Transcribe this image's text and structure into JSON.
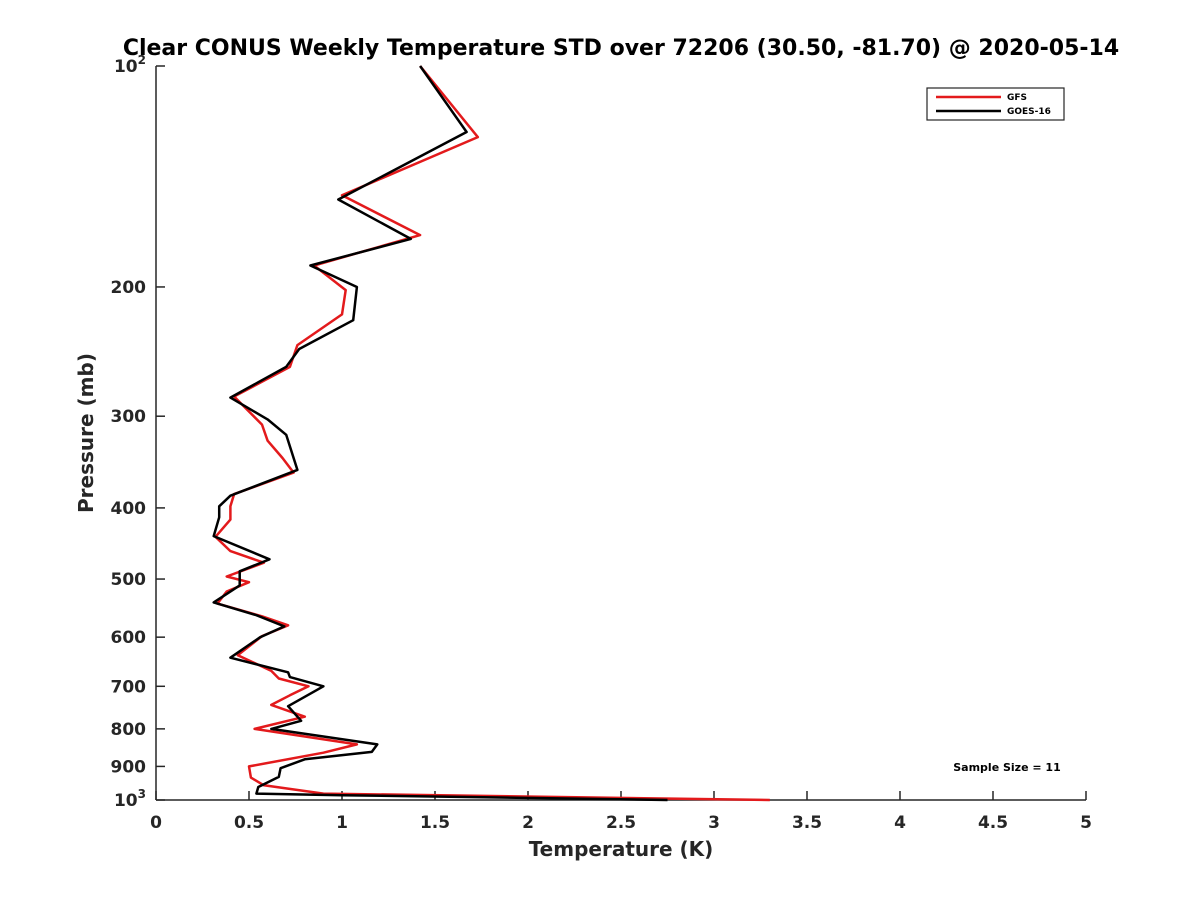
{
  "chart_data": {
    "type": "line",
    "title": "Clear CONUS Weekly Temperature STD over 72206 (30.50, -81.70) @ 2020-05-14",
    "xlabel": "Temperature (K)",
    "ylabel": "Pressure (mb)",
    "xlim": [
      0,
      5
    ],
    "ylim": [
      100,
      1000
    ],
    "y_scale": "log",
    "y_reversed": true,
    "x_ticks": [
      "0",
      "0.5",
      "1",
      "1.5",
      "2",
      "2.5",
      "3",
      "3.5",
      "4",
      "4.5",
      "5"
    ],
    "x_tick_values": [
      0,
      0.5,
      1,
      1.5,
      2,
      2.5,
      3,
      3.5,
      4,
      4.5,
      5
    ],
    "y_ticks": [
      {
        "value": 100,
        "base": "10",
        "exp": "2"
      },
      {
        "value": 200,
        "label": "200"
      },
      {
        "value": 300,
        "label": "300"
      },
      {
        "value": 400,
        "label": "400"
      },
      {
        "value": 500,
        "label": "500"
      },
      {
        "value": 600,
        "label": "600"
      },
      {
        "value": 700,
        "label": "700"
      },
      {
        "value": 800,
        "label": "800"
      },
      {
        "value": 900,
        "label": "900"
      },
      {
        "value": 1000,
        "base": "10",
        "exp": "3"
      }
    ],
    "grid": false,
    "legend_position": "top-right",
    "annotation": "Sample Size = 11",
    "series": [
      {
        "name": "GFS",
        "color": "#e31a1c",
        "points": [
          [
            1.42,
            100
          ],
          [
            1.73,
            125
          ],
          [
            1.0,
            150
          ],
          [
            1.42,
            170
          ],
          [
            0.85,
            187
          ],
          [
            1.02,
            202
          ],
          [
            1.0,
            218
          ],
          [
            0.76,
            240
          ],
          [
            0.72,
            257
          ],
          [
            0.42,
            282
          ],
          [
            0.57,
            308
          ],
          [
            0.6,
            324
          ],
          [
            0.68,
            342
          ],
          [
            0.74,
            358
          ],
          [
            0.42,
            383
          ],
          [
            0.4,
            398
          ],
          [
            0.4,
            415
          ],
          [
            0.32,
            438
          ],
          [
            0.4,
            458
          ],
          [
            0.58,
            475
          ],
          [
            0.38,
            496
          ],
          [
            0.5,
            505
          ],
          [
            0.38,
            520
          ],
          [
            0.33,
            540
          ],
          [
            0.57,
            562
          ],
          [
            0.71,
            578
          ],
          [
            0.57,
            598
          ],
          [
            0.44,
            635
          ],
          [
            0.62,
            667
          ],
          [
            0.66,
            683
          ],
          [
            0.82,
            700
          ],
          [
            0.72,
            720
          ],
          [
            0.62,
            742
          ],
          [
            0.8,
            770
          ],
          [
            0.53,
            800
          ],
          [
            1.08,
            840
          ],
          [
            0.9,
            862
          ],
          [
            0.5,
            900
          ],
          [
            0.51,
            932
          ],
          [
            0.58,
            955
          ],
          [
            0.9,
            980
          ],
          [
            3.3,
            1000
          ]
        ]
      },
      {
        "name": "GOES-16",
        "color": "#000000",
        "points": [
          [
            1.42,
            100
          ],
          [
            1.67,
            123
          ],
          [
            0.98,
            152
          ],
          [
            1.37,
            172
          ],
          [
            0.83,
            187
          ],
          [
            1.08,
            200
          ],
          [
            1.06,
            222
          ],
          [
            0.77,
            243
          ],
          [
            0.7,
            257
          ],
          [
            0.4,
            283
          ],
          [
            0.6,
            303
          ],
          [
            0.7,
            318
          ],
          [
            0.76,
            355
          ],
          [
            0.4,
            385
          ],
          [
            0.34,
            398
          ],
          [
            0.34,
            412
          ],
          [
            0.31,
            437
          ],
          [
            0.61,
            470
          ],
          [
            0.45,
            488
          ],
          [
            0.45,
            510
          ],
          [
            0.31,
            538
          ],
          [
            0.54,
            560
          ],
          [
            0.69,
            580
          ],
          [
            0.56,
            600
          ],
          [
            0.4,
            640
          ],
          [
            0.71,
            670
          ],
          [
            0.72,
            680
          ],
          [
            0.9,
            700
          ],
          [
            0.71,
            745
          ],
          [
            0.78,
            780
          ],
          [
            0.62,
            800
          ],
          [
            1.19,
            840
          ],
          [
            1.16,
            860
          ],
          [
            0.8,
            880
          ],
          [
            0.67,
            905
          ],
          [
            0.66,
            930
          ],
          [
            0.55,
            960
          ],
          [
            0.54,
            980
          ],
          [
            1.0,
            985
          ],
          [
            2.75,
            1000
          ]
        ]
      }
    ]
  }
}
